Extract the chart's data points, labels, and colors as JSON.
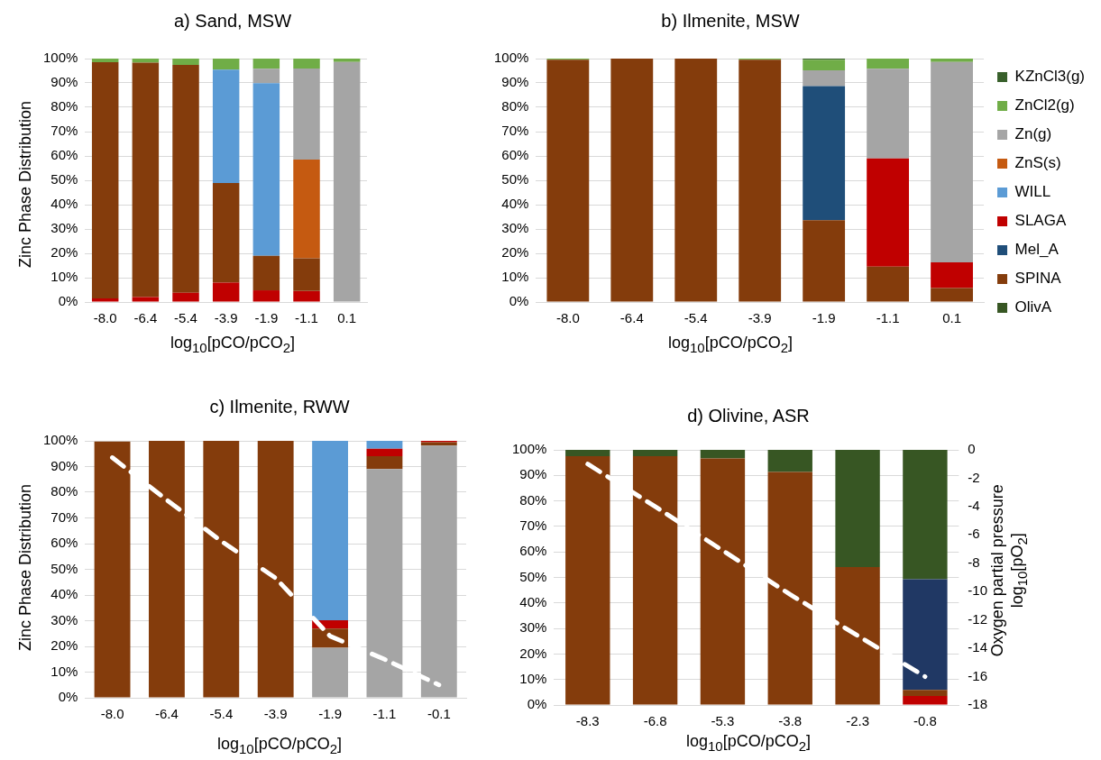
{
  "chart_data": [
    {
      "type": "bar",
      "title": "a) Sand, MSW",
      "xlabel": "log$_{10}$[pCO/pCO$_{2}$]",
      "ylabel": "Zinc Phase Distribution",
      "stacked": true,
      "grid": "y",
      "categories": [
        "-8.0",
        "-6.4",
        "-5.4",
        "-3.9",
        "-1.9",
        "-1.1",
        "0.1"
      ],
      "ylim": [
        0,
        100
      ],
      "yticks": [
        {
          "value": 0,
          "label": "0%"
        },
        {
          "value": 10,
          "label": "10%"
        },
        {
          "value": 20,
          "label": "20%"
        },
        {
          "value": 30,
          "label": "30%"
        },
        {
          "value": 40,
          "label": "40%"
        },
        {
          "value": 50,
          "label": "50%"
        },
        {
          "value": 60,
          "label": "60%"
        },
        {
          "value": 70,
          "label": "70%"
        },
        {
          "value": 80,
          "label": "80%"
        },
        {
          "value": 90,
          "label": "90%"
        },
        {
          "value": 100,
          "label": "100%"
        }
      ],
      "series": [
        {
          "color": "#c00000",
          "values": [
            1.5,
            2.0,
            3.8,
            8.0,
            4.8,
            4.5,
            null
          ]
        },
        {
          "color": "#843c0c",
          "values": [
            97.0,
            96.3,
            93.6,
            40.9,
            14.2,
            13.5,
            null
          ]
        },
        {
          "color": "#5b9bd5",
          "values": [
            null,
            null,
            null,
            46.6,
            70.9,
            null,
            null
          ]
        },
        {
          "color": "#c55a11",
          "values": [
            null,
            null,
            null,
            null,
            null,
            40.5,
            null
          ]
        },
        {
          "color": "#a5a5a5",
          "values": [
            null,
            null,
            null,
            null,
            5.9,
            37.4,
            98.6
          ]
        },
        {
          "color": "#70ad47",
          "values": [
            1.5,
            1.7,
            2.6,
            4.5,
            4.2,
            4.1,
            1.4
          ]
        }
      ]
    },
    {
      "type": "bar",
      "title": "b) Ilmenite, MSW",
      "xlabel": "log$_{10}$[pCO/pCO$_{2}$]",
      "stacked": true,
      "grid": "y",
      "legend": "right",
      "categories": [
        "-8.0",
        "-6.4",
        "-5.4",
        "-3.9",
        "-1.9",
        "-1.1",
        "0.1"
      ],
      "ylim": [
        0,
        100
      ],
      "yticks": [
        {
          "value": 0,
          "label": "0%"
        },
        {
          "value": 10,
          "label": "10%"
        },
        {
          "value": 20,
          "label": "20%"
        },
        {
          "value": 30,
          "label": "30%"
        },
        {
          "value": 40,
          "label": "40%"
        },
        {
          "value": 50,
          "label": "50%"
        },
        {
          "value": 60,
          "label": "60%"
        },
        {
          "value": 70,
          "label": "70%"
        },
        {
          "value": 80,
          "label": "80%"
        },
        {
          "value": 90,
          "label": "90%"
        },
        {
          "value": 100,
          "label": "100%"
        }
      ],
      "series": [
        {
          "name": "OlivA",
          "color": "#375623",
          "values": [
            null,
            null,
            null,
            null,
            null,
            null,
            null
          ]
        },
        {
          "name": "SPINA",
          "color": "#843c0c",
          "values": [
            99.5,
            100,
            100,
            99.5,
            33.6,
            14.5,
            5.7
          ]
        },
        {
          "name": "Mel_A",
          "color": "#1f4e79",
          "values": [
            null,
            null,
            null,
            null,
            55.1,
            null,
            null
          ]
        },
        {
          "name": "SLAGA",
          "color": "#c00000",
          "values": [
            null,
            null,
            null,
            null,
            null,
            44.5,
            10.6
          ]
        },
        {
          "name": "WILL",
          "color": "#5b9bd5",
          "values": [
            null,
            null,
            null,
            null,
            null,
            null,
            null
          ]
        },
        {
          "name": "ZnS(s)",
          "color": "#c55a11",
          "values": [
            null,
            null,
            null,
            null,
            null,
            null,
            null
          ]
        },
        {
          "name": "Zn(g)",
          "color": "#a5a5a5",
          "values": [
            null,
            null,
            null,
            null,
            6.5,
            36.8,
            82.3
          ]
        },
        {
          "name": "ZnCl2(g)",
          "color": "#70ad47",
          "values": [
            0.5,
            null,
            null,
            0.5,
            4.3,
            4.2,
            1.4
          ]
        },
        {
          "name": "KZnCl3(g)",
          "color": "#38602b",
          "values": [
            null,
            null,
            null,
            null,
            0.5,
            null,
            null
          ]
        }
      ]
    },
    {
      "type": "bar",
      "title": "c) Ilmenite, RWW",
      "xlabel": "log$_{10}$[pCO/pCO$_{2}$]",
      "ylabel": "Zinc Phase Distribution",
      "stacked": true,
      "grid": "y",
      "categories": [
        "-8.0",
        "-6.4",
        "-5.4",
        "-3.9",
        "-1.9",
        "-1.1",
        "-0.1"
      ],
      "ylim": [
        0,
        100
      ],
      "yticks": [
        {
          "value": 0,
          "label": "0%"
        },
        {
          "value": 10,
          "label": "10%"
        },
        {
          "value": 20,
          "label": "20%"
        },
        {
          "value": 30,
          "label": "30%"
        },
        {
          "value": 40,
          "label": "40%"
        },
        {
          "value": 50,
          "label": "50%"
        },
        {
          "value": 60,
          "label": "60%"
        },
        {
          "value": 70,
          "label": "70%"
        },
        {
          "value": 80,
          "label": "80%"
        },
        {
          "value": 90,
          "label": "90%"
        },
        {
          "value": 100,
          "label": "100%"
        }
      ],
      "series": [
        {
          "color": "#a5a5a5",
          "values": [
            null,
            null,
            null,
            null,
            19.5,
            89.0,
            98.2
          ]
        },
        {
          "color": "#843c0c",
          "values": [
            99.7,
            100,
            100,
            100,
            7.4,
            5.0,
            1.3
          ]
        },
        {
          "color": "#c00000",
          "values": [
            null,
            null,
            null,
            null,
            3.3,
            2.9,
            0.5
          ]
        },
        {
          "color": "#5b9bd5",
          "values": [
            null,
            null,
            null,
            null,
            69.8,
            3.1,
            null
          ]
        },
        {
          "color": "#375623",
          "values": [
            null,
            null,
            null,
            null,
            null,
            null,
            null
          ]
        },
        {
          "type": "line",
          "color": "#ffffff",
          "line_style": "dashed",
          "marker": "none",
          "values": [
            93.5,
            77,
            61,
            46.6,
            24,
            15,
            5
          ]
        }
      ]
    },
    {
      "type": "bar",
      "title": "d) Olivine, ASR",
      "xlabel": "log$_{10}$[pCO/pCO$_{2}$]",
      "y2label": "Oxygen partial pressure log$_{10}$[pO$_{2}$]",
      "stacked": true,
      "grid": "y",
      "categories": [
        "-8.3",
        "-6.8",
        "-5.3",
        "-3.8",
        "-2.3",
        "-0.8"
      ],
      "ylim": [
        0,
        100
      ],
      "yticks": [
        {
          "value": 0,
          "label": "0%"
        },
        {
          "value": 10,
          "label": "10%"
        },
        {
          "value": 20,
          "label": "20%"
        },
        {
          "value": 30,
          "label": "30%"
        },
        {
          "value": 40,
          "label": "40%"
        },
        {
          "value": 50,
          "label": "50%"
        },
        {
          "value": 60,
          "label": "60%"
        },
        {
          "value": 70,
          "label": "70%"
        },
        {
          "value": 80,
          "label": "80%"
        },
        {
          "value": 90,
          "label": "90%"
        },
        {
          "value": 100,
          "label": "100%"
        }
      ],
      "y2lim": [
        -18,
        0
      ],
      "y2ticks": [
        -18,
        -16,
        -14,
        -12,
        -10,
        -8,
        -6,
        -4,
        -2,
        0
      ],
      "series": [
        {
          "color": "#c00000",
          "values": [
            null,
            null,
            null,
            null,
            null,
            3.5
          ]
        },
        {
          "color": "#843c0c",
          "values": [
            97.5,
            97.5,
            96.6,
            91.3,
            54.1,
            2.4
          ]
        },
        {
          "color": "#203864",
          "values": [
            null,
            null,
            null,
            null,
            null,
            43.4
          ]
        },
        {
          "color": "#375623",
          "values": [
            2.5,
            2.5,
            3.4,
            8.7,
            45.9,
            50.7
          ]
        },
        {
          "type": "line",
          "axis": "y2",
          "color": "#ffffff",
          "line_style": "dashed",
          "marker": "none",
          "values": [
            -1.0,
            -4.0,
            -7.1,
            -10.2,
            -13.1,
            -16.0
          ]
        }
      ]
    }
  ]
}
